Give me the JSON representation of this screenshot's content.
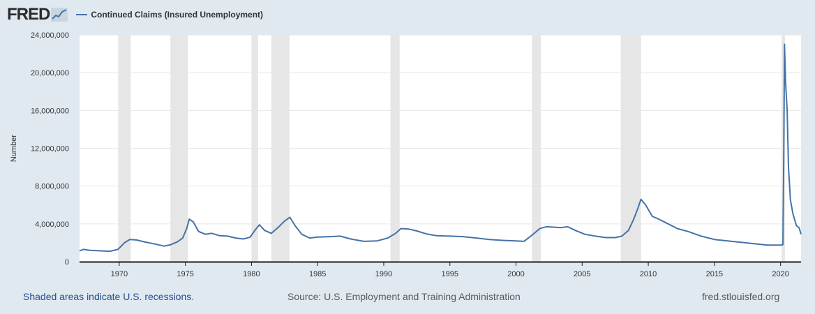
{
  "header": {
    "logo_text": "FRED",
    "legend_label": "Continued Claims (Insured Unemployment)"
  },
  "footer": {
    "recessions_note": "Shaded areas indicate U.S. recessions.",
    "source": "Source: U.S. Employment and Training Administration",
    "site": "fred.stlouisfed.org"
  },
  "colors": {
    "series": "#4572a7",
    "recession": "#e6e6e6",
    "background": "#e1e9f0",
    "plot": "#ffffff"
  },
  "chart_data": {
    "type": "line",
    "ylabel": "Number",
    "xlabel": "",
    "ylim": [
      0,
      24000000
    ],
    "xlim": [
      1967.0,
      2021.55
    ],
    "y_ticks": [
      0,
      4000000,
      8000000,
      12000000,
      16000000,
      20000000,
      24000000
    ],
    "y_tick_labels": [
      "0",
      "4,000,000",
      "8,000,000",
      "12,000,000",
      "16,000,000",
      "20,000,000",
      "24,000,000"
    ],
    "x_ticks": [
      1970,
      1975,
      1980,
      1985,
      1990,
      1995,
      2000,
      2005,
      2010,
      2015,
      2020
    ],
    "x_tick_labels": [
      "1970",
      "1975",
      "1980",
      "1985",
      "1990",
      "1995",
      "2000",
      "2005",
      "2010",
      "2015",
      "2020"
    ],
    "grid": true,
    "legend": "top-left",
    "recessions": [
      [
        1969.92,
        1970.87
      ],
      [
        1973.87,
        1975.2
      ],
      [
        1980.0,
        1980.5
      ],
      [
        1981.5,
        1982.87
      ],
      [
        1990.5,
        1991.2
      ],
      [
        2001.2,
        2001.87
      ],
      [
        2007.92,
        2009.45
      ],
      [
        2020.08,
        2020.33
      ]
    ],
    "series": [
      {
        "name": "Continued Claims (Insured Unemployment)",
        "x": [
          1967.0,
          1967.3,
          1967.8,
          1968.5,
          1969.3,
          1969.9,
          1970.4,
          1970.8,
          1971.3,
          1971.9,
          1972.6,
          1973.4,
          1973.9,
          1974.4,
          1974.8,
          1975.1,
          1975.3,
          1975.6,
          1976.0,
          1976.5,
          1977.0,
          1977.6,
          1978.2,
          1978.8,
          1979.4,
          1979.9,
          1980.3,
          1980.6,
          1981.0,
          1981.5,
          1982.0,
          1982.5,
          1982.9,
          1983.3,
          1983.8,
          1984.4,
          1985.0,
          1986.0,
          1986.7,
          1987.5,
          1988.5,
          1989.5,
          1990.3,
          1990.9,
          1991.3,
          1991.9,
          1992.5,
          1993.2,
          1994.0,
          1995.0,
          1996.0,
          1997.0,
          1998.0,
          1999.0,
          2000.0,
          2000.6,
          2001.2,
          2001.8,
          2002.3,
          2002.9,
          2003.4,
          2003.9,
          2004.5,
          2005.2,
          2006.0,
          2006.8,
          2007.5,
          2008.0,
          2008.5,
          2008.9,
          2009.2,
          2009.45,
          2009.8,
          2010.3,
          2010.8,
          2011.5,
          2012.2,
          2013.0,
          2014.0,
          2015.0,
          2016.0,
          2017.0,
          2018.0,
          2019.0,
          2020.0,
          2020.18,
          2020.24,
          2020.3,
          2020.38,
          2020.5,
          2020.6,
          2020.75,
          2020.95,
          2021.2,
          2021.4,
          2021.55
        ],
        "values": [
          1150000,
          1300000,
          1200000,
          1150000,
          1100000,
          1300000,
          2000000,
          2350000,
          2300000,
          2100000,
          1900000,
          1650000,
          1800000,
          2100000,
          2500000,
          3500000,
          4500000,
          4200000,
          3200000,
          2900000,
          3000000,
          2750000,
          2700000,
          2500000,
          2400000,
          2600000,
          3400000,
          3900000,
          3300000,
          3000000,
          3600000,
          4300000,
          4700000,
          3800000,
          2900000,
          2500000,
          2600000,
          2650000,
          2700000,
          2400000,
          2150000,
          2200000,
          2500000,
          3000000,
          3500000,
          3450000,
          3250000,
          2950000,
          2750000,
          2700000,
          2650000,
          2500000,
          2350000,
          2250000,
          2200000,
          2150000,
          2800000,
          3500000,
          3700000,
          3650000,
          3600000,
          3700000,
          3300000,
          2900000,
          2700000,
          2550000,
          2550000,
          2700000,
          3300000,
          4500000,
          5600000,
          6600000,
          6000000,
          4800000,
          4500000,
          4000000,
          3500000,
          3200000,
          2700000,
          2350000,
          2200000,
          2050000,
          1900000,
          1750000,
          1750000,
          1800000,
          11000000,
          23000000,
          19000000,
          16000000,
          10000000,
          6500000,
          5000000,
          3800000,
          3600000,
          2900000
        ]
      }
    ]
  }
}
